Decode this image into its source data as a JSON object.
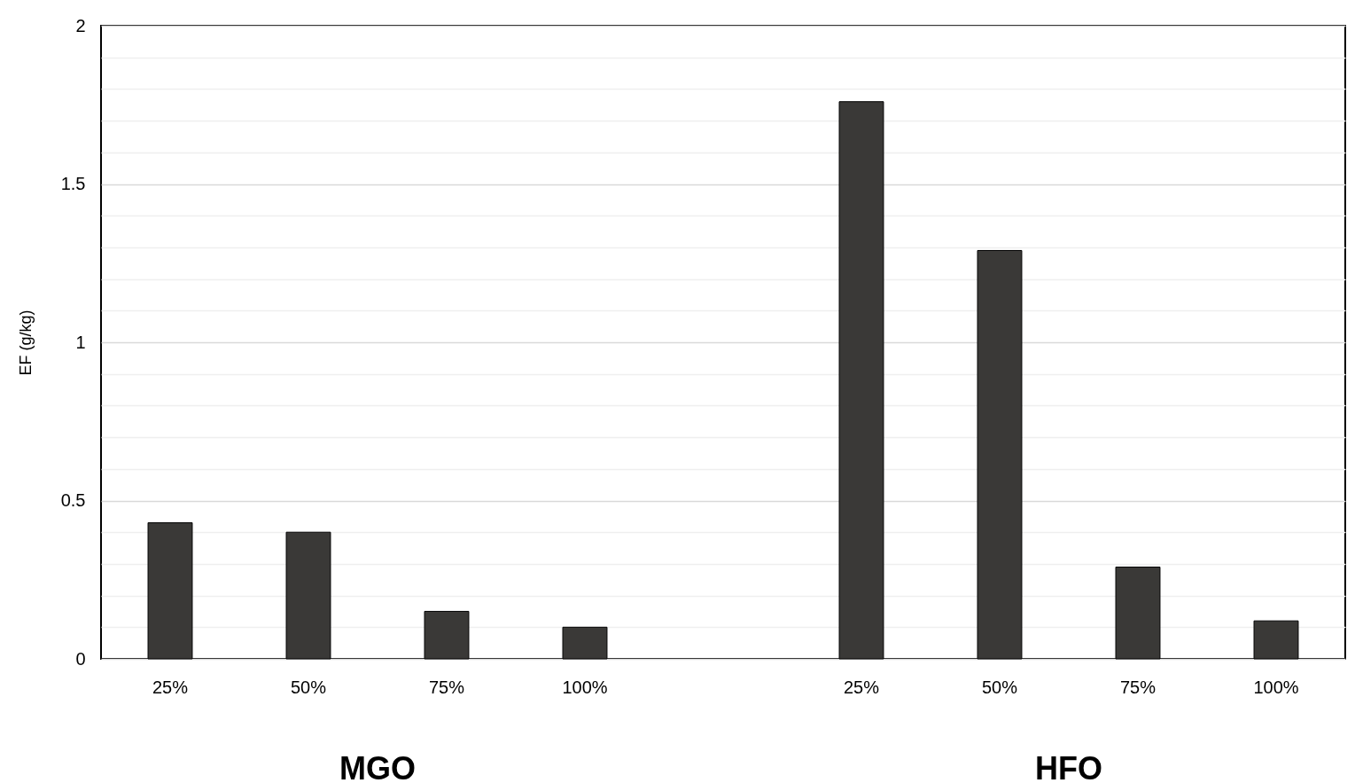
{
  "chart_data": {
    "type": "bar",
    "ylabel": "EF (g/kg)",
    "categories": [
      "25%",
      "50%",
      "75%",
      "100%",
      null,
      "25%",
      "50%",
      "75%",
      "100%"
    ],
    "values": [
      0.43,
      0.4,
      0.15,
      0.1,
      null,
      1.76,
      1.29,
      0.29,
      0.12
    ],
    "color": "#3a3937",
    "ylim": [
      0,
      2
    ],
    "yticks": [
      0,
      {
        "value": 0.1,
        "label": null
      },
      {
        "value": 0.2,
        "label": null
      },
      {
        "value": 0.3,
        "label": null
      },
      {
        "value": 0.4,
        "label": null
      },
      0.5,
      {
        "value": 0.6,
        "label": null
      },
      {
        "value": 0.7,
        "label": null
      },
      {
        "value": 0.8,
        "label": null
      },
      {
        "value": 0.9,
        "label": null
      },
      1,
      {
        "value": 1.1,
        "label": null
      },
      {
        "value": 1.2,
        "label": null
      },
      {
        "value": 1.3,
        "label": null
      },
      {
        "value": 1.4,
        "label": null
      },
      1.5,
      {
        "value": 1.6,
        "label": null
      },
      {
        "value": 1.7,
        "label": null
      },
      {
        "value": 1.8,
        "label": null
      },
      {
        "value": 1.9,
        "label": null
      },
      2
    ],
    "grid": "y",
    "annotations": [
      "MGO",
      "HFO"
    ]
  }
}
